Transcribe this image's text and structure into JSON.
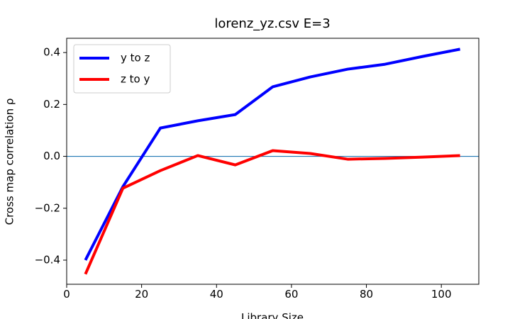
{
  "chart_data": {
    "type": "line",
    "title": "lorenz_yz.csv  E=3",
    "xlabel": "Library Size",
    "ylabel": "Cross map correlation  ρ",
    "x": [
      5,
      15,
      25,
      35,
      45,
      55,
      65,
      75,
      85,
      95,
      105
    ],
    "series": [
      {
        "name": "y to z",
        "color": "#0000ff",
        "values": [
          -0.4,
          -0.117,
          0.109,
          0.137,
          0.161,
          0.268,
          0.306,
          0.336,
          0.355,
          0.385,
          0.413
        ]
      },
      {
        "name": "z to y",
        "color": "#ff0000",
        "values": [
          -0.454,
          -0.123,
          -0.055,
          0.003,
          -0.033,
          0.022,
          0.011,
          -0.011,
          -0.008,
          -0.003,
          0.003
        ]
      }
    ],
    "axhline": 0,
    "axhline_color": "#1f77b4",
    "xlim": [
      0,
      110
    ],
    "xticks": [
      0,
      20,
      40,
      60,
      80,
      100
    ],
    "ylim": [
      -0.493,
      0.455
    ],
    "yticks": [
      {
        "value": -0.4,
        "label": "−0.4"
      },
      {
        "value": -0.2,
        "label": "−0.2"
      },
      {
        "value": 0,
        "label": "0.0"
      },
      {
        "value": 0.2,
        "label": "0.2"
      },
      {
        "value": 0.4,
        "label": "0.4"
      }
    ],
    "grid": false,
    "legend": "upper left"
  }
}
